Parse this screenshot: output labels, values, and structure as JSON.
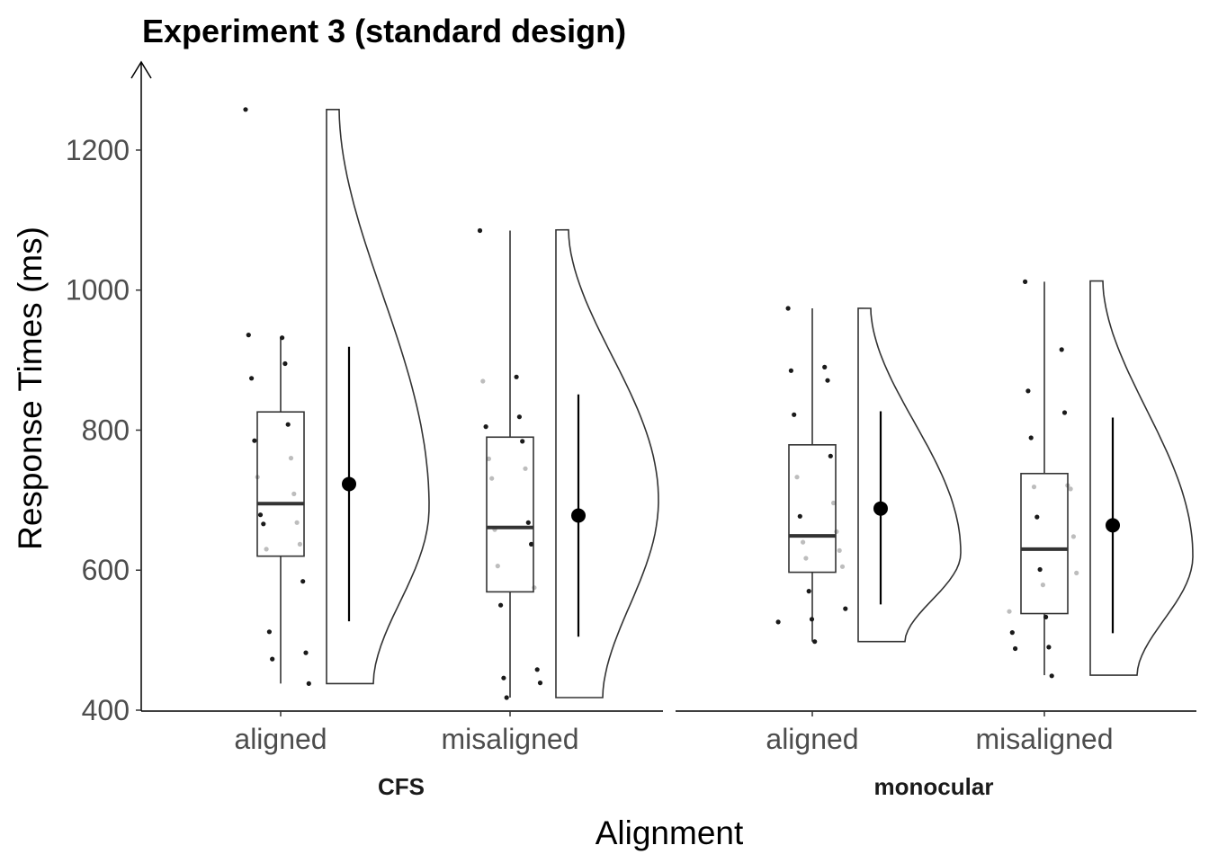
{
  "chart_data": {
    "type": "raincloud",
    "title": "Experiment 3 (standard design)",
    "xlabel": "Alignment",
    "ylabel": "Response Times (ms)",
    "ylim": [
      375,
      1285
    ],
    "y_ticks": [
      400,
      600,
      800,
      1000,
      1200
    ],
    "x_categories": [
      "aligned",
      "misaligned"
    ],
    "facets": [
      {
        "name": "CFS",
        "groups": [
          {
            "category": "aligned",
            "box": {
              "min": 438,
              "q1": 620,
              "median": 695,
              "q3": 826,
              "max": 933
            },
            "mean": 723,
            "ci": [
              527,
              919
            ],
            "violin": {
              "min": 438,
              "max": 1258,
              "mode": 690
            },
            "points": [
              {
                "y": 1258,
                "c": "black"
              },
              {
                "y": 932,
                "c": "black"
              },
              {
                "y": 936,
                "c": "black"
              },
              {
                "y": 895,
                "c": "black"
              },
              {
                "y": 874,
                "c": "black"
              },
              {
                "y": 808,
                "c": "black"
              },
              {
                "y": 785,
                "c": "black"
              },
              {
                "y": 760,
                "c": "grey"
              },
              {
                "y": 733,
                "c": "grey"
              },
              {
                "y": 709,
                "c": "grey"
              },
              {
                "y": 679,
                "c": "black"
              },
              {
                "y": 668,
                "c": "grey"
              },
              {
                "y": 666,
                "c": "black"
              },
              {
                "y": 637,
                "c": "grey"
              },
              {
                "y": 630,
                "c": "grey"
              },
              {
                "y": 584,
                "c": "black"
              },
              {
                "y": 512,
                "c": "black"
              },
              {
                "y": 482,
                "c": "black"
              },
              {
                "y": 473,
                "c": "black"
              },
              {
                "y": 438,
                "c": "black"
              }
            ]
          },
          {
            "category": "misaligned",
            "box": {
              "min": 418,
              "q1": 569,
              "median": 661,
              "q3": 790,
              "max": 1085
            },
            "mean": 678,
            "ci": [
              505,
              851
            ],
            "violin": {
              "min": 418,
              "max": 1086,
              "mode": 700
            },
            "points": [
              {
                "y": 1085,
                "c": "black"
              },
              {
                "y": 876,
                "c": "black"
              },
              {
                "y": 870,
                "c": "grey"
              },
              {
                "y": 819,
                "c": "black"
              },
              {
                "y": 805,
                "c": "black"
              },
              {
                "y": 784,
                "c": "black"
              },
              {
                "y": 759,
                "c": "grey"
              },
              {
                "y": 745,
                "c": "grey"
              },
              {
                "y": 731,
                "c": "grey"
              },
              {
                "y": 668,
                "c": "black"
              },
              {
                "y": 658,
                "c": "grey"
              },
              {
                "y": 637,
                "c": "black"
              },
              {
                "y": 606,
                "c": "grey"
              },
              {
                "y": 575,
                "c": "grey"
              },
              {
                "y": 550,
                "c": "black"
              },
              {
                "y": 458,
                "c": "black"
              },
              {
                "y": 446,
                "c": "black"
              },
              {
                "y": 439,
                "c": "black"
              },
              {
                "y": 418,
                "c": "black"
              }
            ]
          }
        ]
      },
      {
        "name": "monocular",
        "groups": [
          {
            "category": "aligned",
            "box": {
              "min": 498,
              "q1": 597,
              "median": 649,
              "q3": 779,
              "max": 974
            },
            "mean": 688,
            "ci": [
              551,
              827
            ],
            "violin": {
              "min": 498,
              "max": 974,
              "mode": 625
            },
            "points": [
              {
                "y": 974,
                "c": "black"
              },
              {
                "y": 890,
                "c": "black"
              },
              {
                "y": 885,
                "c": "black"
              },
              {
                "y": 871,
                "c": "black"
              },
              {
                "y": 822,
                "c": "black"
              },
              {
                "y": 763,
                "c": "black"
              },
              {
                "y": 733,
                "c": "grey"
              },
              {
                "y": 696,
                "c": "grey"
              },
              {
                "y": 677,
                "c": "black"
              },
              {
                "y": 655,
                "c": "grey"
              },
              {
                "y": 640,
                "c": "grey"
              },
              {
                "y": 628,
                "c": "grey"
              },
              {
                "y": 617,
                "c": "grey"
              },
              {
                "y": 605,
                "c": "grey"
              },
              {
                "y": 570,
                "c": "black"
              },
              {
                "y": 545,
                "c": "black"
              },
              {
                "y": 530,
                "c": "black"
              },
              {
                "y": 526,
                "c": "black"
              },
              {
                "y": 498,
                "c": "black"
              }
            ]
          },
          {
            "category": "misaligned",
            "box": {
              "min": 450,
              "q1": 538,
              "median": 630,
              "q3": 738,
              "max": 1012
            },
            "mean": 664,
            "ci": [
              510,
              818
            ],
            "violin": {
              "min": 450,
              "max": 1013,
              "mode": 620
            },
            "points": [
              {
                "y": 1012,
                "c": "black"
              },
              {
                "y": 915,
                "c": "black"
              },
              {
                "y": 856,
                "c": "black"
              },
              {
                "y": 825,
                "c": "black"
              },
              {
                "y": 789,
                "c": "black"
              },
              {
                "y": 721,
                "c": "grey"
              },
              {
                "y": 719,
                "c": "grey"
              },
              {
                "y": 716,
                "c": "grey"
              },
              {
                "y": 676,
                "c": "black"
              },
              {
                "y": 648,
                "c": "grey"
              },
              {
                "y": 601,
                "c": "black"
              },
              {
                "y": 596,
                "c": "grey"
              },
              {
                "y": 579,
                "c": "grey"
              },
              {
                "y": 541,
                "c": "grey"
              },
              {
                "y": 533,
                "c": "black"
              },
              {
                "y": 511,
                "c": "black"
              },
              {
                "y": 490,
                "c": "black"
              },
              {
                "y": 488,
                "c": "black"
              },
              {
                "y": 449,
                "c": "black"
              }
            ]
          }
        ]
      }
    ],
    "colors": {
      "line": "#333333",
      "point_dark": "#1a1a1a",
      "point_light": "#bdbdbd",
      "mean_point": "#000000"
    }
  }
}
